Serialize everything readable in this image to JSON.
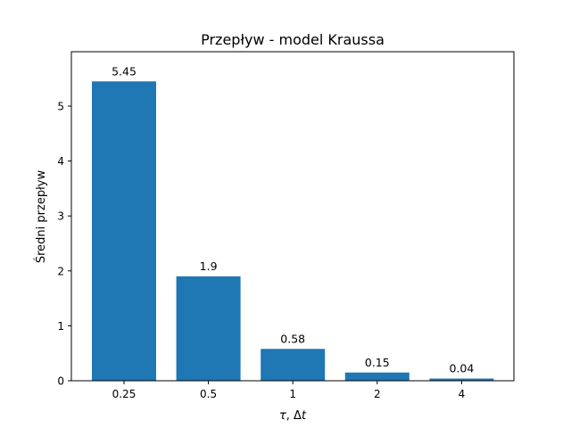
{
  "chart_data": {
    "type": "bar",
    "title": "Przepływ - model Kraussa",
    "categories": [
      "0.25",
      "0.5",
      "1",
      "2",
      "4"
    ],
    "values": [
      5.45,
      1.9,
      0.58,
      0.15,
      0.04
    ],
    "value_labels": [
      "5.45",
      "1.9",
      "0.58",
      "0.15",
      "0.04"
    ],
    "xlabel": "τ, Δt",
    "ylabel": "Średni przepływ",
    "ylim": [
      0,
      5.99
    ],
    "yticks": [
      0,
      1,
      2,
      3,
      4,
      5
    ],
    "bar_color": "#1f77b4",
    "grid": false
  }
}
